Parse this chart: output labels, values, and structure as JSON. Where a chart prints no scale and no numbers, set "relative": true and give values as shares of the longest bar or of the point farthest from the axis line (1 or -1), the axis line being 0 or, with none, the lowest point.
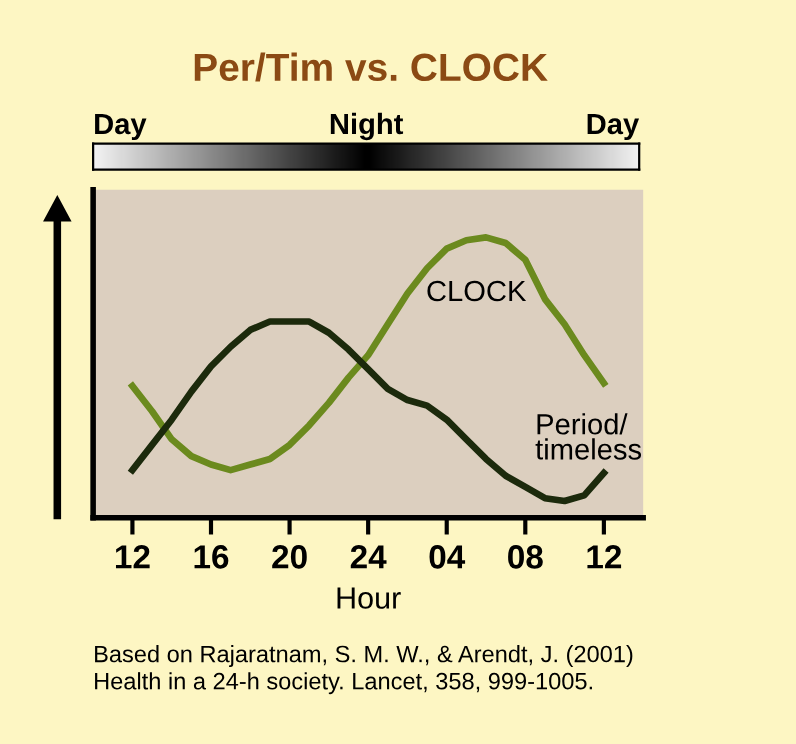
{
  "chart_data": {
    "type": "line",
    "title": "Per/Tim vs. CLOCK",
    "xlabel": "Hour",
    "annotations": [
      "Day",
      "Night",
      "Day",
      "Based on Rajaratnam, S. M. W., & Arendt, J. (2001)\nHealth in a 24-h society. Lancet, 358, 999-1005."
    ],
    "categories": [
      "12",
      null,
      null,
      null,
      "16",
      null,
      null,
      null,
      "20",
      null,
      null,
      null,
      "24",
      null,
      null,
      null,
      "04",
      null,
      null,
      null,
      "08",
      null,
      null,
      null,
      "12"
    ],
    "relative": true,
    "grid": false,
    "legend": false,
    "marker": "none",
    "line_style": "solid",
    "series": [
      {
        "name": "CLOCK",
        "color": "#6b8a1e",
        "values": [
          0.47,
          0.38,
          0.28,
          0.22,
          0.19,
          0.17,
          0.19,
          0.21,
          0.26,
          0.33,
          0.41,
          0.5,
          0.58,
          0.69,
          0.8,
          0.89,
          0.96,
          0.99,
          1.0,
          0.98,
          0.92,
          0.78,
          0.69,
          0.58,
          0.48
        ]
      },
      {
        "name": "Period/\ntimeless",
        "color": "#1c2a0c",
        "values": [
          0.17,
          0.26,
          0.35,
          0.45,
          0.54,
          0.61,
          0.67,
          0.7,
          0.7,
          0.7,
          0.66,
          0.6,
          0.53,
          0.46,
          0.42,
          0.4,
          0.35,
          0.28,
          0.21,
          0.15,
          0.11,
          0.07,
          0.06,
          0.08,
          0.16
        ]
      }
    ]
  }
}
